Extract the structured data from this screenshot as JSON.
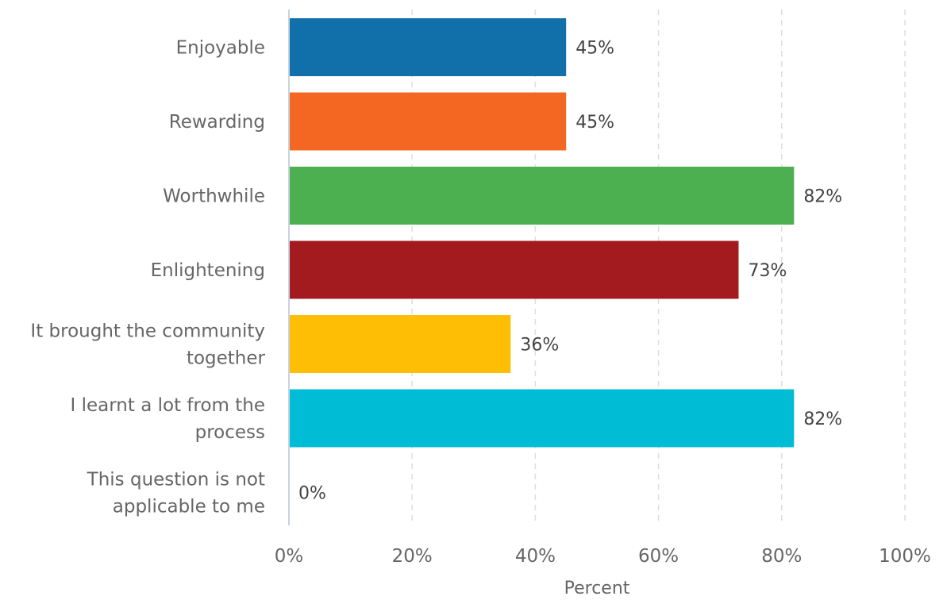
{
  "chart_data": {
    "type": "bar",
    "orientation": "horizontal",
    "categories": [
      [
        "Enjoyable"
      ],
      [
        "Rewarding"
      ],
      [
        "Worthwhile"
      ],
      [
        "Enlightening"
      ],
      [
        "It brought the community",
        "together"
      ],
      [
        "I learnt a lot from the",
        "process"
      ],
      [
        "This question is not",
        "applicable to me"
      ]
    ],
    "values": [
      45,
      45,
      82,
      73,
      36,
      82,
      0
    ],
    "value_labels": [
      "45%",
      "45%",
      "82%",
      "73%",
      "36%",
      "82%",
      "0%"
    ],
    "colors": [
      "#1170aa",
      "#f46722",
      "#4caf50",
      "#a31b1f",
      "#ffbe06",
      "#00bcd4",
      "#9e9e9e"
    ],
    "xlabel": "Percent",
    "ylabel": "",
    "xlim": [
      0,
      100
    ],
    "xticks": [
      0,
      20,
      40,
      60,
      80,
      100
    ],
    "xtick_labels": [
      "0%",
      "20%",
      "40%",
      "60%",
      "80%",
      "100%"
    ],
    "grid": true,
    "grid_style": "dashed-vertical"
  }
}
